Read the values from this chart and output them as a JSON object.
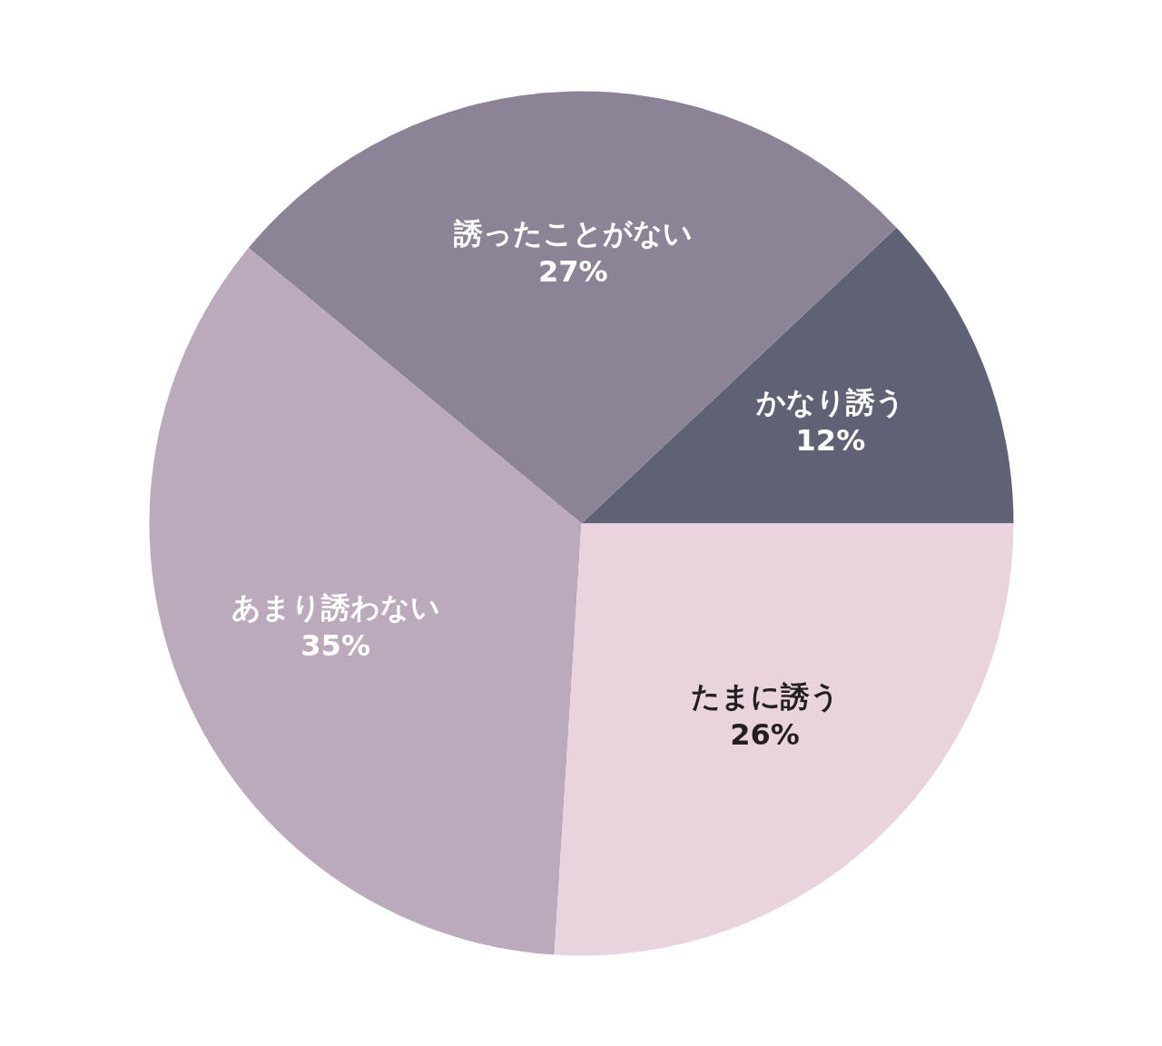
{
  "chart_data": {
    "type": "pie",
    "categories": [
      "かなり誘う",
      "誘ったことがない",
      "あまり誘わない",
      "たまに誘う"
    ],
    "values": [
      12,
      27,
      35,
      26
    ],
    "colors": [
      "#5f6275",
      "#8c8496",
      "#bba9bc",
      "#e9d3df"
    ],
    "value_labels": [
      "12%",
      "27%",
      "35%",
      "26%"
    ]
  }
}
